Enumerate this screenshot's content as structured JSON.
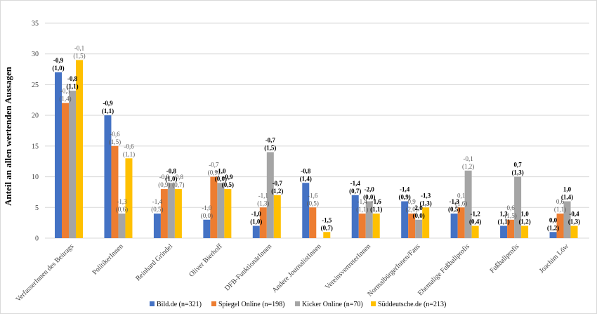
{
  "chart_data": {
    "type": "bar",
    "ylabel": "Anteil an allen wertenden Aussagen",
    "ylim": [
      0,
      35
    ],
    "yticks": [
      0,
      5,
      10,
      15,
      20,
      25,
      30,
      35
    ],
    "grid": true,
    "legend_position": "bottom",
    "categories": [
      "VerfasserInnen des Beitrags",
      "PolitikerInnen",
      "Reinhard Grindel",
      "Oliver Bierhoff",
      "DFB-FunktionärInnen",
      "Andere JournalistInnen",
      "VereinsvertreterInnen",
      "NormalbürgerInnen/Fans",
      "Ehemalige Fußballprofis",
      "Fußballprofis",
      "Joachim Löw"
    ],
    "series": [
      {
        "name": "Bild.de (n=321)",
        "color": "#4472C4",
        "values": [
          27,
          20,
          4,
          3,
          2,
          9,
          7,
          6,
          4,
          2,
          1
        ],
        "labels": [
          [
            "-0,9",
            "(1,0)"
          ],
          [
            "-0,9",
            "(1,1)"
          ],
          [
            "-1,4",
            "(0,5)"
          ],
          [
            "-1,0",
            "(0,0)"
          ],
          [
            "-1,0",
            "(1,0)"
          ],
          [
            "-0,8",
            "(1,4)"
          ],
          [
            "-1,4",
            "(0,7)"
          ],
          [
            "-1,4",
            "(0,9)"
          ],
          [
            "-1,3",
            "(0,5)"
          ],
          [
            "1,3",
            "(1,1)"
          ],
          [
            "0,0",
            "(1,2)"
          ]
        ],
        "label_bold": [
          true,
          true,
          false,
          false,
          true,
          true,
          true,
          true,
          true,
          true,
          true
        ]
      },
      {
        "name": "Spiegel Online (n=198)",
        "color": "#ED7D31",
        "values": [
          22,
          15,
          8,
          10,
          5,
          5,
          4,
          4,
          5,
          3,
          4
        ],
        "labels": [
          [
            "-0,3",
            "(1,4)"
          ],
          [
            "-0,6",
            "(1,5)"
          ],
          [
            "-0,9",
            "(0,9)"
          ],
          [
            "-0,7",
            "(0,9)"
          ],
          [
            "-1,1",
            "(1,3)"
          ],
          [
            "-1,6",
            "(0,5)"
          ],
          [
            "-1,4",
            "(1,1)"
          ],
          [
            "0,9",
            "(2,0)"
          ],
          [
            "0,1",
            "(1,6)"
          ],
          [
            "0,6",
            "(1,5)"
          ],
          [
            "0,6",
            "(1,1)"
          ]
        ],
        "label_bold": [
          false,
          false,
          false,
          false,
          false,
          false,
          false,
          false,
          false,
          false,
          false
        ]
      },
      {
        "name": "Kicker Online (n=70)",
        "color": "#A5A5A5",
        "values": [
          24,
          4,
          9,
          9,
          14,
          0,
          6,
          3,
          11,
          10,
          6
        ],
        "labels": [
          [
            "-0,8",
            "(1,1)"
          ],
          [
            "-1,3",
            "(0,6)"
          ],
          [
            "-0,8",
            "(1,0)"
          ],
          [
            "-1,0",
            "(0,0)"
          ],
          [
            "-0,7",
            "(1,5)"
          ],
          null,
          [
            "-2,0",
            "(0,0)"
          ],
          [
            "2,0",
            "(0,0)"
          ],
          [
            "-0,1",
            "(1,2)"
          ],
          [
            "0,7",
            "(1,3)"
          ],
          [
            "1,0",
            "(1,4)"
          ]
        ],
        "label_bold": [
          true,
          false,
          true,
          true,
          true,
          false,
          true,
          true,
          false,
          true,
          true
        ]
      },
      {
        "name": "Süddeutsche.de (n=213)",
        "color": "#FFC000",
        "values": [
          29,
          13,
          8,
          8,
          7,
          1,
          4,
          5,
          2,
          2,
          2
        ],
        "labels": [
          [
            "-0,1",
            "(1,5)"
          ],
          [
            "-0,6",
            "(1,1)"
          ],
          [
            "-0,8",
            "(0,7)"
          ],
          [
            "-0,9",
            "(0,5)"
          ],
          [
            "-0,7",
            "(1,2)"
          ],
          [
            "-1,5",
            "(0,7)"
          ],
          [
            "-1,6",
            "(1,1)"
          ],
          [
            "-1,3",
            "(1,3)"
          ],
          [
            "-1,2",
            "(0,4)"
          ],
          [
            "1,0",
            "(1,2)"
          ],
          [
            "-0,4",
            "(1,3)"
          ]
        ],
        "label_bold": [
          false,
          false,
          false,
          true,
          true,
          true,
          true,
          true,
          true,
          true,
          true
        ]
      }
    ]
  }
}
